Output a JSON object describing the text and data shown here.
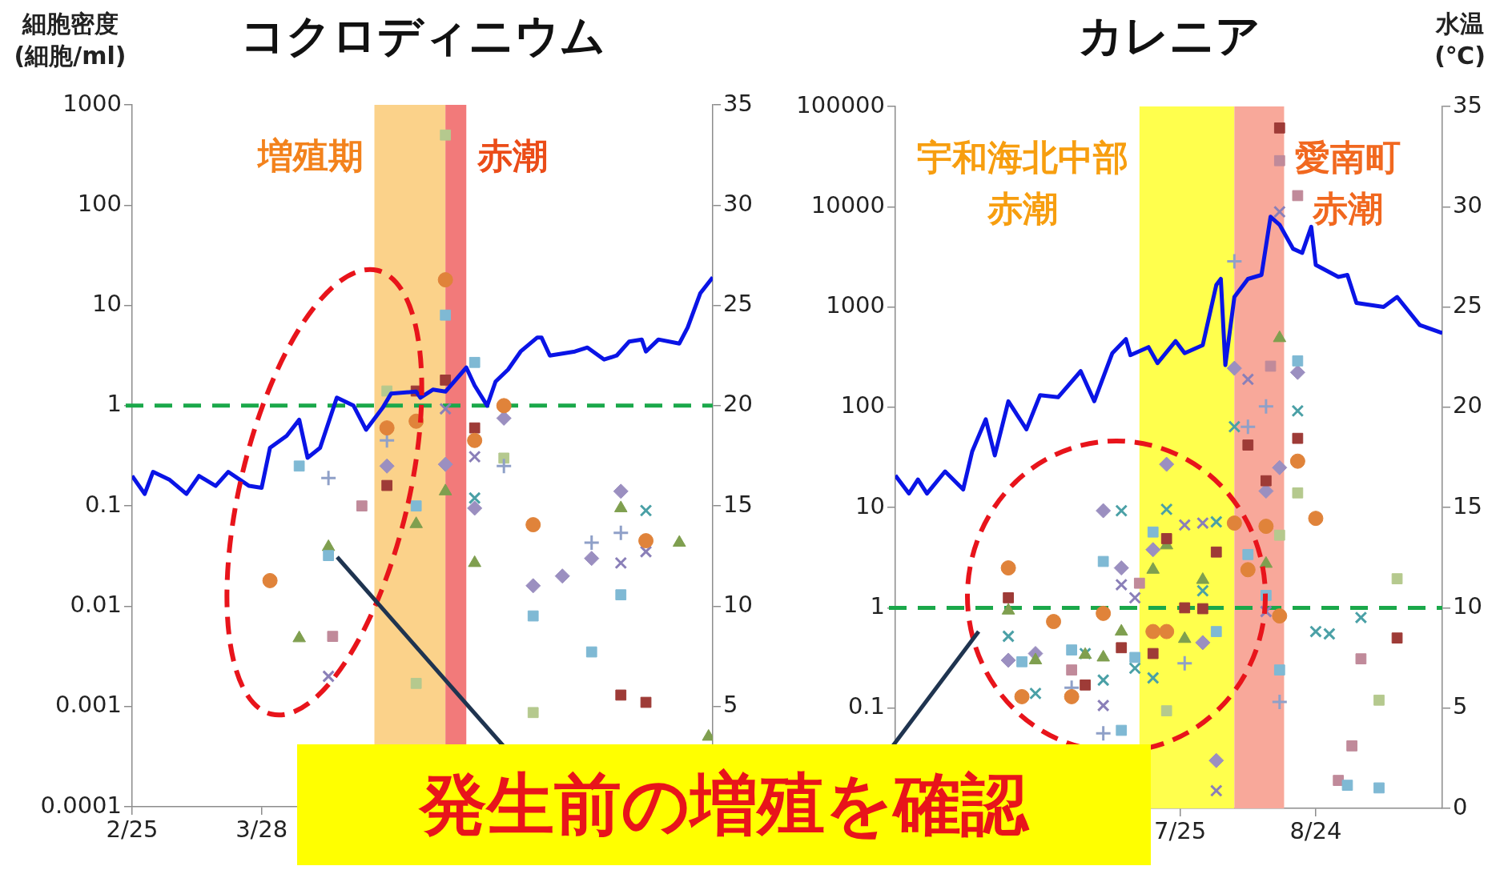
{
  "chart_data": [
    {
      "type": "scatter",
      "title": "コクロディニウム",
      "ylabel": "細胞密度\n(細胞/ml)",
      "log": "y",
      "legend": false,
      "grid": false,
      "xlim": [
        "--02-25",
        "--07-14"
      ],
      "xticks": [
        {
          "value": "--02-25",
          "label": "2/25"
        },
        {
          "value": "--03-28",
          "label": "3/28"
        },
        {
          "value": "--04-28",
          "label": null
        },
        {
          "value": "--05-29",
          "label": null
        },
        {
          "value": "--06-29",
          "label": null
        }
      ],
      "ylim": [
        0.0001,
        1000
      ],
      "yticks": [
        0.0001,
        0.001,
        0.01,
        0.1,
        1,
        10,
        100,
        1000
      ],
      "y2lim": [
        0,
        35
      ],
      "y2ticks": [
        5,
        10,
        15,
        20,
        25,
        30,
        35
      ],
      "bands": [
        {
          "axis": "x",
          "from": "--04-24",
          "to": "--05-11",
          "label": "増殖期",
          "color": "#fbd28a"
        },
        {
          "axis": "x",
          "from": "--05-11",
          "to": "--05-16",
          "label": "赤潮",
          "color": "#f27a7a"
        }
      ],
      "ref_lines": [
        {
          "axis": "y",
          "value": 1,
          "label": null,
          "color": "#1aa84a",
          "line_style": "dashed"
        }
      ],
      "annotations": [
        "発生前の増殖を確認"
      ],
      "series": [
        {
          "type": "line",
          "axis": "y2",
          "color": "#0a14e6",
          "marker": "none",
          "x": [
            "--02-25",
            "--02-28",
            "--03-02",
            "--03-06",
            "--03-10",
            "--03-13",
            "--03-17",
            "--03-20",
            "--03-25",
            "--03-28",
            "--03-30",
            "--04-03",
            "--04-06",
            "--04-08",
            "--04-11",
            "--04-15",
            "--04-19",
            "--04-22",
            "--04-26",
            "--04-28",
            "--05-04",
            "--05-05",
            "--05-08",
            "--05-11",
            "--05-16",
            "--05-18",
            "--05-21",
            "--05-23",
            "--05-26",
            "--05-29",
            "--06-02",
            "--06-03",
            "--06-05",
            "--06-11",
            "--06-14",
            "--06-18",
            "--06-21",
            "--06-24",
            "--06-27",
            "--06-28",
            "--07-01",
            "--07-06",
            "--07-08",
            "--07-11",
            "--07-14"
          ],
          "values": [
            16.5,
            15.6,
            16.7,
            16.3,
            15.6,
            16.5,
            16.0,
            16.7,
            16.0,
            15.9,
            17.9,
            18.5,
            19.3,
            17.4,
            17.9,
            20.4,
            20.0,
            18.8,
            19.9,
            20.6,
            20.7,
            20.4,
            20.8,
            20.7,
            21.9,
            21.0,
            20.0,
            21.2,
            21.8,
            22.7,
            23.4,
            23.4,
            22.5,
            22.7,
            22.9,
            22.3,
            22.5,
            23.2,
            23.3,
            22.7,
            23.3,
            23.1,
            23.9,
            25.6,
            26.4
          ]
        },
        {
          "color": "#e0833a",
          "marker": "circle",
          "x": [
            "--03-30",
            "--04-27",
            "--05-04",
            "--05-11",
            "--05-18",
            "--05-25",
            "--06-01",
            "--06-28"
          ],
          "values": [
            0.018,
            0.6,
            0.7,
            18,
            0.45,
            1.0,
            0.065,
            0.045
          ]
        },
        {
          "color": "#9e3b37",
          "marker": "square",
          "x": [
            "--05-04",
            "--05-11",
            "--05-18",
            "--04-27",
            "--06-22",
            "--06-28"
          ],
          "values": [
            1.4,
            1.8,
            0.6,
            0.16,
            0.0013,
            0.0011
          ]
        },
        {
          "color": "#7fb9d4",
          "marker": "square",
          "x": [
            "--05-11",
            "--05-18",
            "--04-06",
            "--04-13",
            "--05-04",
            "--06-01",
            "--06-15",
            "--06-22"
          ],
          "values": [
            8,
            2.7,
            0.25,
            0.032,
            0.1,
            0.008,
            0.0035,
            0.013
          ]
        },
        {
          "color": "#7f9f4f",
          "marker": "triangle",
          "x": [
            "--04-06",
            "--04-13",
            "--05-04",
            "--05-11",
            "--05-18",
            "--06-22",
            "--07-06",
            "--07-13"
          ],
          "values": [
            0.0048,
            0.039,
            0.066,
            0.14,
            0.027,
            0.095,
            0.043,
            0.0005
          ]
        },
        {
          "color": "#9b8fc0",
          "marker": "diamond",
          "x": [
            "--04-27",
            "--05-11",
            "--05-18",
            "--05-25",
            "--06-01",
            "--06-08",
            "--06-15",
            "--06-22"
          ],
          "values": [
            0.25,
            0.26,
            0.095,
            0.75,
            0.016,
            0.02,
            0.03,
            0.14
          ]
        },
        {
          "color": "#8a7fb8",
          "marker": "cross",
          "x": [
            "--04-13",
            "--05-11",
            "--05-18",
            "--06-22",
            "--06-28"
          ],
          "values": [
            0.002,
            0.93,
            0.31,
            0.027,
            0.035
          ]
        },
        {
          "color": "#4aa0a6",
          "marker": "cross",
          "x": [
            "--05-18",
            "--06-28"
          ],
          "values": [
            0.12,
            0.09
          ]
        },
        {
          "color": "#8fa0c8",
          "marker": "plus",
          "x": [
            "--04-13",
            "--04-27",
            "--05-25",
            "--06-15",
            "--06-22"
          ],
          "values": [
            0.19,
            0.45,
            0.25,
            0.043,
            0.054
          ]
        },
        {
          "color": "#b5c98e",
          "marker": "square",
          "x": [
            "--05-11",
            "--04-27",
            "--05-04",
            "--06-01",
            "--05-25"
          ],
          "values": [
            500,
            1.4,
            0.0017,
            0.00087,
            0.3
          ]
        },
        {
          "color": "#c08a9a",
          "marker": "square",
          "x": [
            "--04-21",
            "--04-14"
          ],
          "values": [
            0.1,
            0.005
          ]
        }
      ]
    },
    {
      "type": "scatter",
      "title": "カレニア",
      "y2label": "水温\n(℃)",
      "log": "y",
      "legend": false,
      "grid": false,
      "xlim": [
        "--05-23",
        "--09-21"
      ],
      "xticks": [
        {
          "value": "--06-25",
          "label": null
        },
        {
          "value": "--07-25",
          "label": "7/25"
        },
        {
          "value": "--08-24",
          "label": "8/24"
        }
      ],
      "ylim": [
        0.01,
        100000
      ],
      "yticks": [
        {
          "value": 0.01,
          "label": null
        },
        0.1,
        1,
        10,
        100,
        1000,
        10000,
        100000
      ],
      "y2lim": [
        0,
        35
      ],
      "y2ticks": [
        0,
        5,
        10,
        15,
        20,
        25,
        30,
        35
      ],
      "bands": [
        {
          "axis": "x",
          "from": "--07-16",
          "to": "--08-06",
          "label": "宇和海北中部赤潮",
          "color": "#ffff4d"
        },
        {
          "axis": "x",
          "from": "--08-06",
          "to": "--08-17",
          "label": "愛南町赤潮",
          "color": "#f8a89a"
        }
      ],
      "ref_lines": [
        {
          "axis": "y",
          "value": 1,
          "label": null,
          "color": "#1aa84a",
          "line_style": "dashed"
        }
      ],
      "series": [
        {
          "type": "line",
          "axis": "y2",
          "color": "#0a14e6",
          "marker": "none",
          "x": [
            "--05-23",
            "--05-26",
            "--05-28",
            "--05-30",
            "--06-03",
            "--06-07",
            "--06-09",
            "--06-12",
            "--06-14",
            "--06-17",
            "--06-21",
            "--06-24",
            "--06-28",
            "--07-03",
            "--07-06",
            "--07-10",
            "--07-13",
            "--07-14",
            "--07-18",
            "--07-20",
            "--07-24",
            "--07-26",
            "--07-30",
            "--08-02",
            "--08-03",
            "--08-04",
            "--08-06",
            "--08-09",
            "--08-12",
            "--08-14",
            "--08-16",
            "--08-19",
            "--08-21",
            "--08-23",
            "--08-24",
            "--08-29",
            "--08-31",
            "--09-02",
            "--09-08",
            "--09-11",
            "--09-16",
            "--09-21"
          ],
          "values": [
            16.6,
            15.7,
            16.4,
            15.7,
            16.8,
            15.9,
            17.8,
            19.4,
            17.6,
            20.3,
            18.9,
            20.6,
            20.5,
            21.8,
            20.3,
            22.7,
            23.4,
            22.6,
            23.0,
            22.2,
            23.3,
            22.7,
            23.1,
            26.1,
            26.4,
            22.1,
            25.5,
            26.4,
            26.6,
            29.5,
            29.1,
            27.9,
            27.7,
            29.0,
            27.1,
            26.5,
            26.6,
            25.2,
            25.0,
            25.5,
            24.1,
            23.7
          ]
        },
        {
          "color": "#e0833a",
          "marker": "circle",
          "x": [
            "--06-17",
            "--06-20",
            "--06-27",
            "--07-01",
            "--07-08",
            "--07-19",
            "--07-22",
            "--08-06",
            "--08-09",
            "--08-13",
            "--08-16",
            "--08-20",
            "--08-24"
          ],
          "values": [
            2.5,
            0.13,
            0.73,
            0.13,
            0.88,
            0.58,
            0.58,
            7,
            2.4,
            6.5,
            0.83,
            29,
            7.8
          ]
        },
        {
          "color": "#9e3b37",
          "marker": "square",
          "x": [
            "--06-17",
            "--07-04",
            "--07-12",
            "--07-19",
            "--07-22",
            "--07-26",
            "--07-30",
            "--08-02",
            "--08-13",
            "--09-11",
            "--08-16",
            "--08-20",
            "--08-09"
          ],
          "values": [
            1.26,
            0.17,
            0.4,
            0.35,
            4.9,
            1.0,
            0.98,
            3.6,
            18.5,
            0.5,
            61000,
            49,
            42
          ]
        },
        {
          "color": "#7fb9d4",
          "marker": "square",
          "x": [
            "--07-08",
            "--07-01",
            "--06-20",
            "--07-12",
            "--07-15",
            "--07-19",
            "--08-02",
            "--08-09",
            "--08-13",
            "--08-16",
            "--08-31",
            "--09-07",
            "--08-20"
          ],
          "values": [
            2.9,
            0.38,
            0.29,
            0.06,
            0.32,
            5.7,
            0.58,
            3.4,
            1.33,
            0.24,
            0.017,
            0.016,
            290
          ]
        },
        {
          "color": "#7f9f4f",
          "marker": "triangle",
          "x": [
            "--06-17",
            "--06-23",
            "--07-04",
            "--07-08",
            "--07-12",
            "--07-19",
            "--07-22",
            "--07-26",
            "--07-30",
            "--08-13",
            "--08-16"
          ],
          "values": [
            0.94,
            0.3,
            0.34,
            0.32,
            0.58,
            2.4,
            4.2,
            0.49,
            1.9,
            2.75,
            490
          ]
        },
        {
          "color": "#9b8fc0",
          "marker": "diamond",
          "x": [
            "--06-17",
            "--06-23",
            "--07-08",
            "--07-12",
            "--07-19",
            "--07-22",
            "--07-30",
            "--08-02",
            "--08-13",
            "--08-16",
            "--08-06",
            "--08-20"
          ],
          "values": [
            0.3,
            0.35,
            9.3,
            2.5,
            3.8,
            27,
            0.45,
            0.03,
            14.6,
            25,
            245,
            223
          ]
        },
        {
          "color": "#8a7fb8",
          "marker": "cross",
          "x": [
            "--07-12",
            "--07-08",
            "--07-15",
            "--07-26",
            "--07-30",
            "--08-02",
            "--08-13",
            "--08-09",
            "--08-16"
          ],
          "values": [
            1.7,
            0.106,
            1.26,
            6.7,
            7,
            0.015,
            0.92,
            190,
            8900
          ]
        },
        {
          "color": "#4aa0a6",
          "marker": "cross",
          "x": [
            "--06-17",
            "--06-23",
            "--07-04",
            "--07-08",
            "--07-12",
            "--07-15",
            "--07-19",
            "--07-22",
            "--07-30",
            "--08-02",
            "--08-24",
            "--08-27",
            "--09-03",
            "--08-06",
            "--08-20"
          ],
          "values": [
            0.52,
            0.14,
            0.35,
            0.19,
            9.3,
            0.25,
            0.2,
            9.6,
            1.48,
            7.2,
            0.58,
            0.55,
            0.8,
            64,
            92
          ]
        },
        {
          "color": "#8fa0c8",
          "marker": "plus",
          "x": [
            "--07-08",
            "--07-01",
            "--07-26",
            "--08-16",
            "--08-06",
            "--08-09",
            "--08-13"
          ],
          "values": [
            0.056,
            0.16,
            0.28,
            0.115,
            2860,
            64,
            102
          ]
        },
        {
          "color": "#b5c98e",
          "marker": "square",
          "x": [
            "--08-20",
            "--09-11",
            "--09-07",
            "--07-22",
            "--08-16"
          ],
          "values": [
            14,
            1.95,
            0.12,
            0.094,
            5.3
          ]
        },
        {
          "color": "#c08a9a",
          "marker": "square",
          "x": [
            "--08-16",
            "--08-20",
            "--08-14",
            "--09-03",
            "--09-01",
            "--08-29",
            "--07-01",
            "--07-16"
          ],
          "values": [
            28800,
            12900,
            257,
            0.31,
            0.042,
            0.019,
            0.24,
            1.76
          ]
        }
      ]
    }
  ]
}
